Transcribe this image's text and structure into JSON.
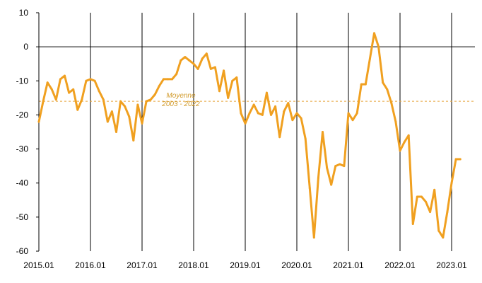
{
  "chart_data": {
    "type": "line",
    "title": "",
    "xlabel": "",
    "ylabel": "",
    "ylim": [
      -60,
      10
    ],
    "yticks": [
      10,
      0,
      -10,
      -20,
      -30,
      -40,
      -50,
      -60
    ],
    "xlim": [
      "2015.01",
      "2023.03"
    ],
    "xtick_labels": [
      "2015.01",
      "2016.01",
      "2017.01",
      "2018.01",
      "2019.01",
      "2020.01",
      "2021.01",
      "2022.01",
      "2023.01"
    ],
    "grid": "vertical lines at each year start",
    "colors": {
      "series": "#f0a020",
      "average": "#e8a53a",
      "axis": "#000000"
    },
    "reference_line": {
      "label_line1": "Moyenne",
      "label_line2": "2003 - 2022",
      "value": -16
    },
    "series": [
      {
        "x": [
          "2015.01",
          "2015.02",
          "2015.03",
          "2015.04",
          "2015.05",
          "2015.06",
          "2015.07",
          "2015.08",
          "2015.09",
          "2015.10",
          "2015.11",
          "2015.12",
          "2016.01",
          "2016.02",
          "2016.03",
          "2016.04",
          "2016.05",
          "2016.06",
          "2016.07",
          "2016.08",
          "2016.09",
          "2016.10",
          "2016.11",
          "2016.12",
          "2017.01",
          "2017.02",
          "2017.03",
          "2017.04",
          "2017.05",
          "2017.06",
          "2017.07",
          "2017.08",
          "2017.09",
          "2017.10",
          "2017.11",
          "2017.12",
          "2018.01",
          "2018.02",
          "2018.03",
          "2018.04",
          "2018.05",
          "2018.06",
          "2018.07",
          "2018.08",
          "2018.09",
          "2018.10",
          "2018.11",
          "2018.12",
          "2019.01",
          "2019.02",
          "2019.03",
          "2019.04",
          "2019.05",
          "2019.06",
          "2019.07",
          "2019.08",
          "2019.09",
          "2019.10",
          "2019.11",
          "2019.12",
          "2020.01",
          "2020.02",
          "2020.03",
          "2020.04",
          "2020.05",
          "2020.06",
          "2020.07",
          "2020.08",
          "2020.09",
          "2020.10",
          "2020.11",
          "2020.12",
          "2021.01",
          "2021.02",
          "2021.03",
          "2021.04",
          "2021.05",
          "2021.06",
          "2021.07",
          "2021.08",
          "2021.09",
          "2021.10",
          "2021.11",
          "2021.12",
          "2022.01",
          "2022.02",
          "2022.03",
          "2022.04",
          "2022.05",
          "2022.06",
          "2022.07",
          "2022.08",
          "2022.09",
          "2022.10",
          "2022.11",
          "2022.12",
          "2023.01",
          "2023.02",
          "2023.03"
        ],
        "values": [
          -22,
          -16,
          -10.5,
          -12.5,
          -15.5,
          -9.5,
          -8.5,
          -13.5,
          -12.5,
          -18.5,
          -15.5,
          -10,
          -9.5,
          -10,
          -13,
          -15.5,
          -22,
          -19,
          -25,
          -16,
          -17.5,
          -20.5,
          -27.5,
          -17,
          -22.5,
          -16,
          -15.5,
          -14,
          -11.5,
          -9.5,
          -9.5,
          -9.5,
          -8,
          -4,
          -3,
          -4,
          -5,
          -6.5,
          -3.5,
          -2,
          -6.5,
          -6,
          -13,
          -7,
          -15,
          -10,
          -9,
          -19.5,
          -22.5,
          -19.5,
          -17,
          -19.5,
          -20,
          -13.5,
          -20,
          -17.5,
          -26.5,
          -19,
          -16.5,
          -21.5,
          -19.5,
          -21,
          -27,
          -41.5,
          -56,
          -38.5,
          -25,
          -35.5,
          -40.5,
          -35,
          -34.5,
          -35,
          -19.5,
          -21.5,
          -19.5,
          -11,
          -11,
          -3.5,
          4,
          0,
          -10.5,
          -12.5,
          -16.5,
          -22,
          -30.5,
          -28,
          -26,
          -52,
          -44,
          -44,
          -45.5,
          -48.5,
          -42,
          -54,
          -56,
          -48.5,
          -40,
          -33,
          -33
        ]
      }
    ]
  }
}
